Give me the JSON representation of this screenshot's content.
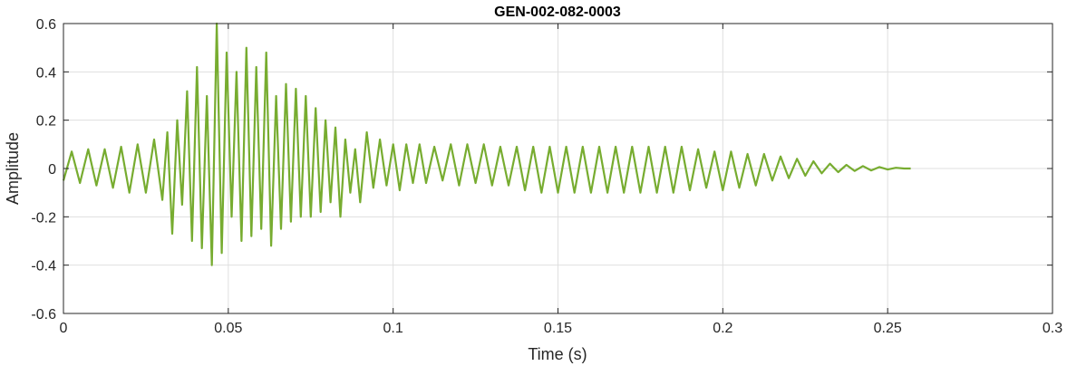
{
  "chart_data": {
    "type": "line",
    "title": "GEN-002-082-0003",
    "xlabel": "Time (s)",
    "ylabel": "Amplitude",
    "xlim": [
      0,
      0.3
    ],
    "ylim": [
      -0.6,
      0.6
    ],
    "grid": true,
    "x_ticks": [
      0,
      0.05,
      0.1,
      0.15,
      0.2,
      0.25,
      0.3
    ],
    "x_tick_labels": [
      "0",
      "0.05",
      "0.1",
      "0.15",
      "0.2",
      "0.25",
      "0.3"
    ],
    "y_ticks": [
      0.6,
      0.4,
      0.2,
      0,
      -0.2,
      -0.4,
      -0.6
    ],
    "y_tick_labels": [
      "0.6",
      "0.4",
      "0.2",
      "0",
      "-0.2",
      "-0.4",
      "-0.6"
    ],
    "series": [
      {
        "color": "#77ac30",
        "x": [
          0,
          0.0025,
          0.005,
          0.0075,
          0.01,
          0.0125,
          0.015,
          0.0175,
          0.02,
          0.0225,
          0.025,
          0.0275,
          0.03,
          0.0315,
          0.033,
          0.0345,
          0.036,
          0.0375,
          0.039,
          0.0405,
          0.042,
          0.0435,
          0.045,
          0.0465,
          0.048,
          0.0495,
          0.051,
          0.0525,
          0.054,
          0.0555,
          0.057,
          0.0585,
          0.06,
          0.0615,
          0.063,
          0.0645,
          0.066,
          0.0675,
          0.069,
          0.0705,
          0.072,
          0.0735,
          0.075,
          0.0765,
          0.078,
          0.0795,
          0.081,
          0.0825,
          0.084,
          0.0855,
          0.087,
          0.0885,
          0.09,
          0.092,
          0.094,
          0.096,
          0.098,
          0.1,
          0.102,
          0.104,
          0.106,
          0.108,
          0.11,
          0.1125,
          0.115,
          0.1175,
          0.12,
          0.1225,
          0.125,
          0.1275,
          0.13,
          0.1325,
          0.135,
          0.1375,
          0.14,
          0.1425,
          0.145,
          0.1475,
          0.15,
          0.1525,
          0.155,
          0.1575,
          0.16,
          0.1625,
          0.165,
          0.1675,
          0.17,
          0.1725,
          0.175,
          0.1775,
          0.18,
          0.1825,
          0.185,
          0.1875,
          0.19,
          0.1925,
          0.195,
          0.1975,
          0.2,
          0.2025,
          0.205,
          0.2075,
          0.21,
          0.2125,
          0.215,
          0.2175,
          0.22,
          0.2225,
          0.225,
          0.2275,
          0.23,
          0.2325,
          0.235,
          0.2375,
          0.24,
          0.2425,
          0.245,
          0.2475,
          0.25,
          0.2525,
          0.255,
          0.257
        ],
        "y": [
          -0.05,
          0.07,
          -0.06,
          0.08,
          -0.07,
          0.08,
          -0.08,
          0.09,
          -0.1,
          0.1,
          -0.1,
          0.12,
          -0.13,
          0.15,
          -0.27,
          0.2,
          -0.15,
          0.32,
          -0.3,
          0.42,
          -0.33,
          0.3,
          -0.4,
          0.6,
          -0.35,
          0.48,
          -0.2,
          0.4,
          -0.3,
          0.5,
          -0.28,
          0.42,
          -0.25,
          0.48,
          -0.32,
          0.3,
          -0.25,
          0.35,
          -0.22,
          0.33,
          -0.2,
          0.3,
          -0.2,
          0.25,
          -0.18,
          0.2,
          -0.14,
          0.17,
          -0.2,
          0.12,
          -0.1,
          0.08,
          -0.14,
          0.15,
          -0.08,
          0.12,
          -0.07,
          0.1,
          -0.09,
          0.1,
          -0.06,
          0.1,
          -0.06,
          0.09,
          -0.05,
          0.1,
          -0.07,
          0.1,
          -0.06,
          0.1,
          -0.07,
          0.09,
          -0.07,
          0.09,
          -0.09,
          0.09,
          -0.1,
          0.09,
          -0.1,
          0.09,
          -0.1,
          0.09,
          -0.1,
          0.09,
          -0.1,
          0.09,
          -0.1,
          0.09,
          -0.1,
          0.09,
          -0.1,
          0.09,
          -0.1,
          0.09,
          -0.09,
          0.08,
          -0.08,
          0.07,
          -0.09,
          0.07,
          -0.08,
          0.06,
          -0.07,
          0.06,
          -0.05,
          0.05,
          -0.04,
          0.04,
          -0.03,
          0.03,
          -0.02,
          0.02,
          -0.015,
          0.015,
          -0.01,
          0.01,
          -0.008,
          0.006,
          -0.004,
          0.003,
          0,
          0
        ]
      }
    ]
  }
}
